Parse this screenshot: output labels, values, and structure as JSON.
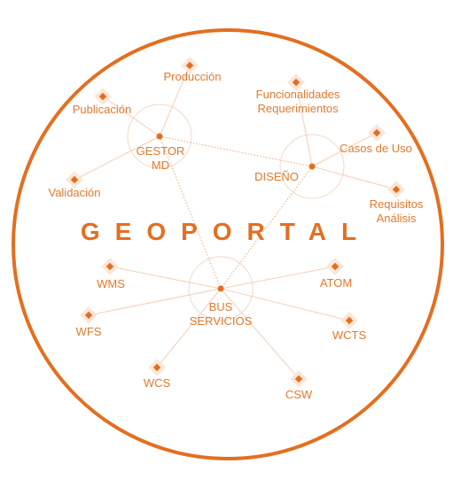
{
  "title": "GEOPORTAL",
  "colors": {
    "accent": "#e36f20",
    "text": "#e07a2e",
    "line": "#f3b891",
    "hub_ring": "#f2d9c6"
  },
  "hubs": {
    "gestor": "GESTOR\nMD",
    "diseno": "DISEÑO",
    "bus": "BUS\nSERVICIOS"
  },
  "nodes": {
    "produccion": "Producción",
    "publicacion": "Publicación",
    "funcionalidades": "Funcionalidades\nRequerimientos",
    "casos_uso": "Casos de Uso",
    "validacion": "Validación",
    "requisitos": "Requisitos\nAnálisis",
    "wms": "WMS",
    "atom": "ATOM",
    "wfs": "WFS",
    "wcts": "WCTS",
    "wcs": "WCS",
    "csw": "CSW"
  }
}
